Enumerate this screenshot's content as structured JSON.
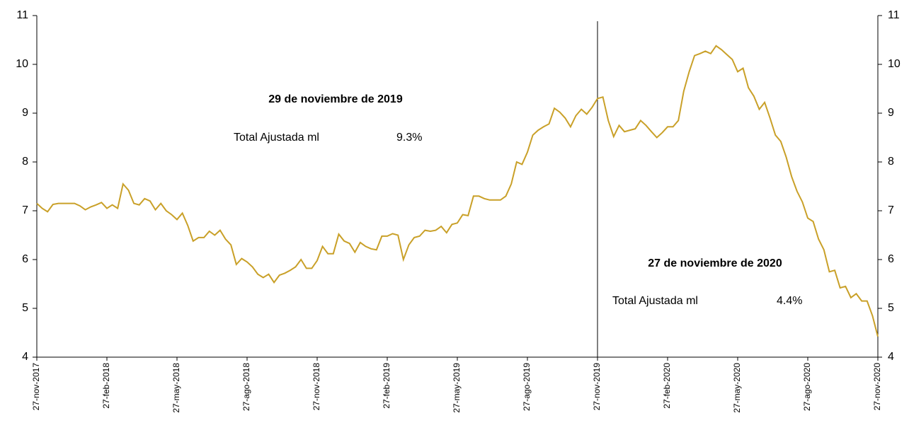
{
  "chart_data": {
    "type": "line",
    "categories": [
      "27-nov-2017",
      null,
      null,
      null,
      null,
      null,
      null,
      null,
      null,
      null,
      null,
      null,
      null,
      "27-feb-2018",
      null,
      null,
      null,
      null,
      null,
      null,
      null,
      null,
      null,
      null,
      null,
      null,
      "27-may-2018",
      null,
      null,
      null,
      null,
      null,
      null,
      null,
      null,
      null,
      null,
      null,
      null,
      "27-ago-2018",
      null,
      null,
      null,
      null,
      null,
      null,
      null,
      null,
      null,
      null,
      null,
      null,
      "27-nov-2018",
      null,
      null,
      null,
      null,
      null,
      null,
      null,
      null,
      null,
      null,
      null,
      null,
      "27-feb-2019",
      null,
      null,
      null,
      null,
      null,
      null,
      null,
      null,
      null,
      null,
      null,
      null,
      "27-may-2019",
      null,
      null,
      null,
      null,
      null,
      null,
      null,
      null,
      null,
      null,
      null,
      null,
      "27-ago-2019",
      null,
      null,
      null,
      null,
      null,
      null,
      null,
      null,
      null,
      null,
      null,
      null,
      "27-nov-2019",
      null,
      null,
      null,
      null,
      null,
      null,
      null,
      null,
      null,
      null,
      null,
      null,
      "27-feb-2020",
      null,
      null,
      null,
      null,
      null,
      null,
      null,
      null,
      null,
      null,
      null,
      null,
      "27-may-2020",
      null,
      null,
      null,
      null,
      null,
      null,
      null,
      null,
      null,
      null,
      null,
      null,
      "27-ago-2020",
      null,
      null,
      null,
      null,
      null,
      null,
      null,
      null,
      null,
      null,
      null,
      null,
      "27-nov-2020"
    ],
    "series": [
      {
        "color": "#c9a028",
        "values": [
          7.15,
          7.05,
          6.98,
          7.13,
          7.15,
          7.15,
          7.15,
          7.15,
          7.1,
          7.02,
          7.08,
          7.12,
          7.17,
          7.05,
          7.12,
          7.05,
          7.55,
          7.42,
          7.15,
          7.12,
          7.25,
          7.2,
          7.02,
          7.15,
          7.0,
          6.92,
          6.82,
          6.95,
          6.7,
          6.38,
          6.45,
          6.45,
          6.58,
          6.5,
          6.6,
          6.42,
          6.3,
          5.9,
          6.02,
          5.95,
          5.85,
          5.7,
          5.63,
          5.7,
          5.53,
          5.68,
          5.72,
          5.78,
          5.85,
          6.0,
          5.82,
          5.82,
          5.98,
          6.27,
          6.12,
          6.12,
          6.52,
          6.38,
          6.33,
          6.15,
          6.35,
          6.27,
          6.22,
          6.2,
          6.48,
          6.48,
          6.53,
          6.5,
          6.0,
          6.3,
          6.45,
          6.48,
          6.6,
          6.58,
          6.6,
          6.68,
          6.55,
          6.72,
          6.75,
          6.92,
          6.9,
          7.3,
          7.3,
          7.25,
          7.22,
          7.22,
          7.22,
          7.3,
          7.55,
          8.0,
          7.95,
          8.2,
          8.55,
          8.65,
          8.72,
          8.78,
          9.1,
          9.02,
          8.9,
          8.72,
          8.95,
          9.08,
          8.98,
          9.12,
          9.3,
          9.33,
          8.85,
          8.52,
          8.75,
          8.62,
          8.65,
          8.68,
          8.85,
          8.75,
          8.62,
          8.5,
          8.6,
          8.72,
          8.72,
          8.85,
          9.45,
          9.85,
          10.18,
          10.22,
          10.27,
          10.22,
          10.38,
          10.3,
          10.2,
          10.1,
          9.85,
          9.92,
          9.52,
          9.35,
          9.08,
          9.22,
          8.9,
          8.55,
          8.42,
          8.1,
          7.7,
          7.4,
          7.18,
          6.85,
          6.78,
          6.42,
          6.2,
          5.75,
          5.78,
          5.42,
          5.45,
          5.22,
          5.3,
          5.15,
          5.15,
          4.85,
          4.42
        ]
      }
    ],
    "ylim": [
      4,
      11
    ],
    "yticks": [
      4,
      5,
      6,
      7,
      8,
      9,
      10,
      11
    ],
    "annotations": [
      {
        "title": "29 de noviembre de 2019",
        "label": "Total Ajustada ml",
        "value": "9.3%"
      },
      {
        "title": "27 de noviembre de 2020",
        "label": "Total Ajustada ml",
        "value": "4.4%"
      }
    ]
  }
}
